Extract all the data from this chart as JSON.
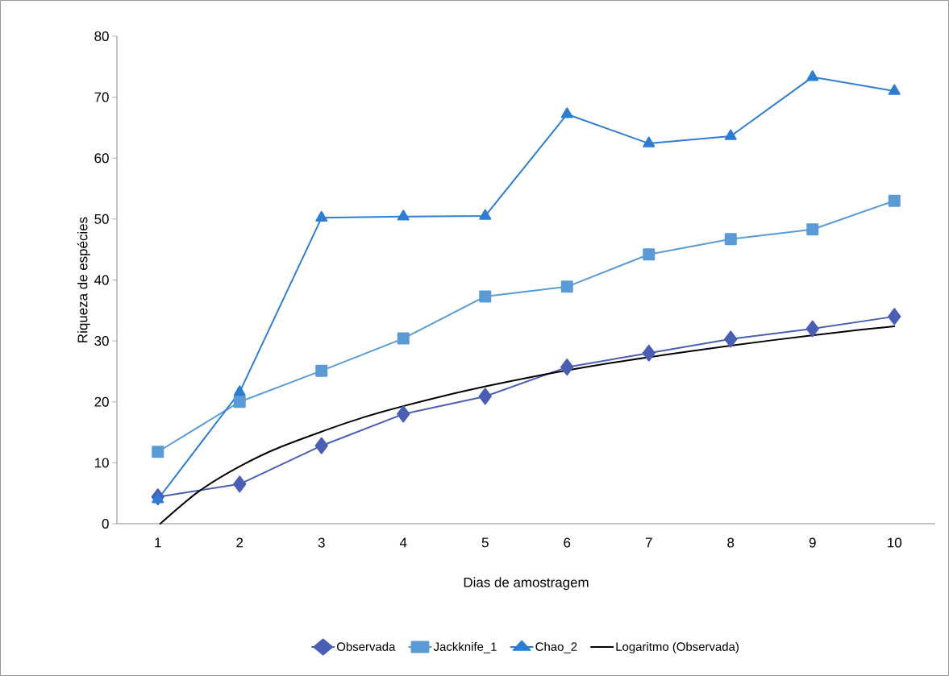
{
  "chart_data": {
    "type": "line",
    "xlabel": "Dias de amostragem",
    "ylabel": "Riqueza de espécies",
    "xlim": [
      0.5,
      10.5
    ],
    "xticks": [
      1,
      2,
      3,
      4,
      5,
      6,
      7,
      8,
      9,
      10
    ],
    "ylim": [
      0,
      80
    ],
    "yticks": [
      0,
      10,
      20,
      30,
      40,
      50,
      60,
      70,
      80
    ],
    "grid": false,
    "legend": "bottom",
    "line_style": "solid",
    "series": [
      {
        "name": "Observada",
        "color": "#4a5fb3",
        "marker": "diamond",
        "x": [
          1,
          2,
          3,
          4,
          5,
          6,
          7,
          8,
          9,
          10
        ],
        "values": [
          4.4,
          6.5,
          12.8,
          18,
          20.9,
          25.7,
          28,
          30.3,
          32,
          34
        ]
      },
      {
        "name": "Jackknife_1",
        "color": "#5b9bd5",
        "marker": "square",
        "x": [
          1,
          2,
          3,
          4,
          5,
          6,
          7,
          8,
          9,
          10
        ],
        "values": [
          11.8,
          20,
          25.1,
          30.4,
          37.3,
          38.9,
          44.2,
          46.7,
          48.3,
          53
        ]
      },
      {
        "name": "Chao_2",
        "color": "#2d7dd2",
        "marker": "triangle",
        "x": [
          1,
          2,
          3,
          4,
          5,
          6,
          7,
          8,
          9,
          10
        ],
        "values": [
          4,
          21.6,
          50.2,
          50.4,
          50.5,
          67.2,
          62.4,
          63.6,
          73.3,
          71
        ]
      },
      {
        "name": "Logaritmo (Observada)",
        "color": "#000000",
        "marker": "none",
        "x": [
          1.03,
          1.5,
          2,
          2.5,
          3.5,
          4.5,
          5.5,
          6.5,
          7.5,
          8.5,
          9.5,
          10
        ],
        "values": [
          0,
          5.3,
          9.4,
          12.6,
          17.4,
          21,
          23.9,
          26.3,
          28.3,
          30.1,
          31.7,
          32.4
        ]
      }
    ]
  }
}
